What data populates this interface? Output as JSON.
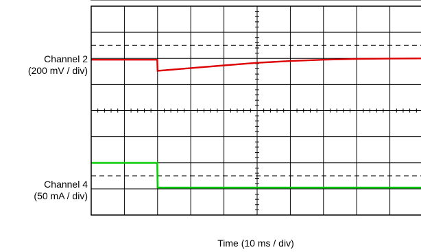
{
  "chart_data": {
    "type": "line",
    "title": "",
    "xlabel": "Time (10 ms / div)",
    "x_divisions": 10,
    "y_divisions": 8,
    "grid": true,
    "x_range_ms": [
      0,
      100
    ],
    "channels": [
      {
        "name": "Channel 2",
        "scale": "(200 mV / div)",
        "color": "#dd0000",
        "reference_div": 1.5,
        "x_ms": [
          0,
          19.9,
          20.0,
          30,
          40,
          50,
          60,
          70,
          80,
          90,
          100
        ],
        "y_div": [
          2.05,
          2.05,
          2.48,
          2.37,
          2.27,
          2.17,
          2.1,
          2.05,
          2.02,
          2.01,
          2.0
        ]
      },
      {
        "name": "Channel 4",
        "scale": "(50 mA / div)",
        "color": "#00cc00",
        "reference_div": 6.5,
        "x_ms": [
          0,
          19.9,
          20.0,
          100
        ],
        "y_div": [
          6.0,
          6.0,
          6.95,
          6.95
        ]
      }
    ]
  }
}
